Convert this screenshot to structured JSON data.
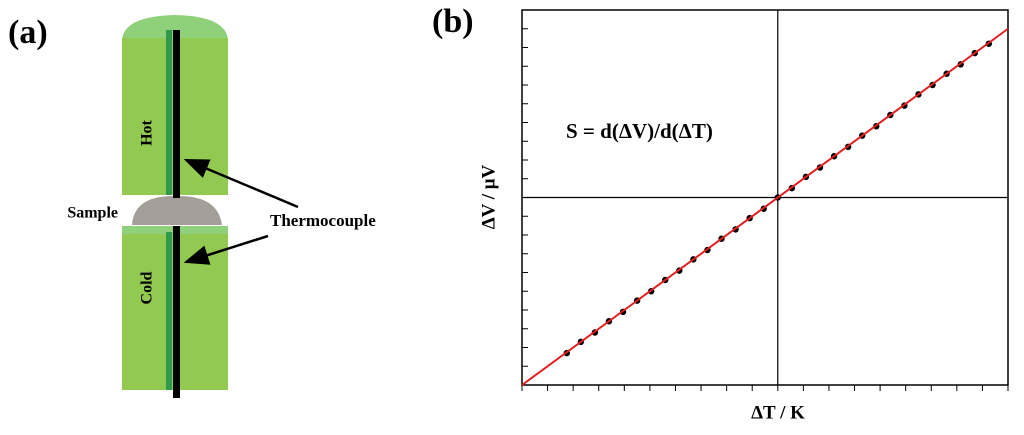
{
  "panel_a": {
    "label": "(a)",
    "hot": "Hot",
    "cold": "Cold",
    "sample": "Sample",
    "thermocouple": "Thermocouple"
  },
  "chart_data": {
    "type": "scatter",
    "panel_label": "(b)",
    "annotation": "S = d(ΔV)/d(ΔT)",
    "x_label": "ΔT / K",
    "y_label": "ΔV / μV",
    "x": [
      -0.825,
      -0.77,
      -0.715,
      -0.66,
      -0.605,
      -0.55,
      -0.495,
      -0.44,
      -0.385,
      -0.33,
      -0.275,
      -0.22,
      -0.165,
      -0.11,
      -0.055,
      0,
      0.055,
      0.11,
      0.165,
      0.22,
      0.275,
      0.33,
      0.385,
      0.44,
      0.495,
      0.55,
      0.605,
      0.66,
      0.715,
      0.77,
      0.825
    ],
    "values": [
      -0.83,
      -0.77,
      -0.72,
      -0.66,
      -0.61,
      -0.55,
      -0.5,
      -0.44,
      -0.39,
      -0.33,
      -0.28,
      -0.22,
      -0.17,
      -0.11,
      -0.06,
      0,
      0.05,
      0.11,
      0.16,
      0.22,
      0.27,
      0.33,
      0.38,
      0.44,
      0.49,
      0.55,
      0.6,
      0.66,
      0.71,
      0.77,
      0.82
    ],
    "color": "#000000",
    "fit": {
      "x": [
        -1,
        0.9
      ],
      "y": [
        -1,
        0.9
      ],
      "color": "#e02020"
    },
    "xlim": [
      -1,
      0.9
    ],
    "ylim": [
      -1,
      1
    ],
    "xticks": [
      -1,
      -0.9,
      -0.8,
      -0.7,
      -0.6,
      -0.5,
      -0.4,
      -0.3,
      -0.2,
      -0.1,
      0,
      0.1,
      0.2,
      0.3,
      0.4,
      0.5,
      0.6,
      0.7,
      0.8,
      0.9
    ],
    "yticks": [
      -1,
      -0.9,
      -0.8,
      -0.7,
      -0.6,
      -0.5,
      -0.4,
      -0.3,
      -0.2,
      -0.1,
      0,
      0.1,
      0.2,
      0.3,
      0.4,
      0.5,
      0.6,
      0.7,
      0.8,
      0.9,
      1
    ]
  }
}
